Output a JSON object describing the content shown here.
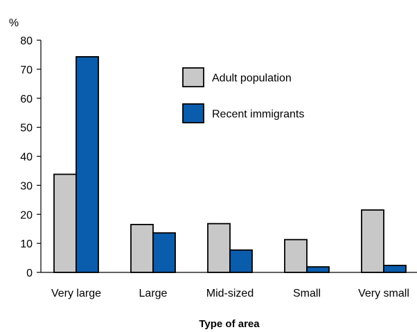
{
  "chart_data": {
    "type": "bar",
    "title": "",
    "unit_label": "%",
    "xlabel": "Type of area",
    "ylabel": "",
    "ylim": [
      0,
      80
    ],
    "yticks": [
      0,
      10,
      20,
      30,
      40,
      50,
      60,
      70,
      80
    ],
    "grid": false,
    "legend_position": "upper-middle",
    "categories": [
      "Very large",
      "Large",
      "Mid-sized",
      "Small",
      "Very small"
    ],
    "series": [
      {
        "name": "Adult population",
        "color": "#c8c8c8",
        "values": [
          33.8,
          16.5,
          16.8,
          11.3,
          21.5
        ]
      },
      {
        "name": "Recent immigrants",
        "color": "#0a5cad",
        "values": [
          74.3,
          13.6,
          7.7,
          1.9,
          2.4
        ]
      }
    ]
  }
}
